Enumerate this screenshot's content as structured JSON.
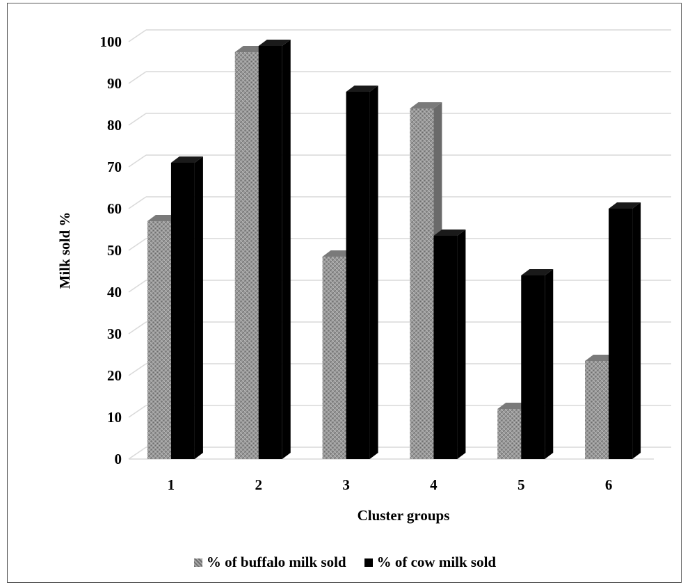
{
  "chart_data": {
    "type": "bar",
    "categories": [
      "1",
      "2",
      "3",
      "4",
      "5",
      "6"
    ],
    "series": [
      {
        "name": "% of buffalo milk sold",
        "values": [
          57,
          97.5,
          48.5,
          84,
          12,
          23.5
        ],
        "color": "#8c8c8c",
        "pattern": "crosshatch"
      },
      {
        "name": "% of cow milk sold",
        "values": [
          71,
          99,
          88,
          53.5,
          44,
          60
        ],
        "color": "#000000"
      }
    ],
    "yticks": [
      "0",
      "10",
      "20",
      "30",
      "40",
      "50",
      "60",
      "70",
      "80",
      "90",
      "100"
    ],
    "ylim": [
      0,
      100
    ],
    "xlabel": "Cluster groups",
    "ylabel": "Milk sold %",
    "grid": true,
    "legend": "bottom",
    "style": "3d-columns"
  }
}
